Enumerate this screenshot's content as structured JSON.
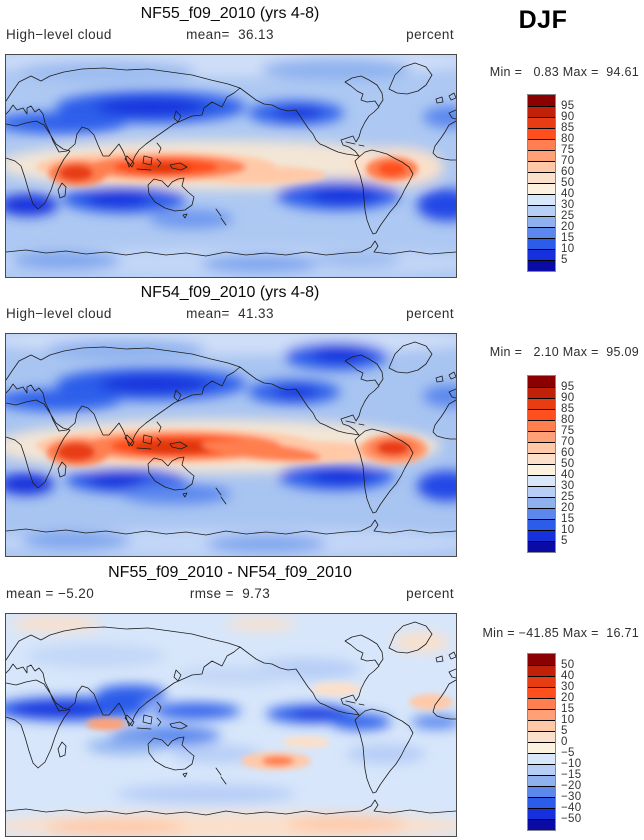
{
  "figure": {
    "season_label": "DJF"
  },
  "panels": [
    {
      "title": "NF55_f09_2010 (yrs 4-8)",
      "subtitle_left": "High−level cloud",
      "subtitle_center": "mean=  36.13",
      "subtitle_right": "percent",
      "minmax": "Min =   0.83 Max =  94.61"
    },
    {
      "title": "NF54_f09_2010 (yrs 4-8)",
      "subtitle_left": "High−level cloud",
      "subtitle_center": "mean=  41.33",
      "subtitle_right": "percent",
      "minmax": "Min =   2.10 Max =  95.09"
    },
    {
      "title": "NF55_f09_2010 - NF54_f09_2010",
      "subtitle_left": "mean = −5.20",
      "subtitle_center": "rmse =  9.73",
      "subtitle_right": "percent",
      "minmax": "Min = −41.85 Max =  16.71"
    }
  ],
  "colorbars": {
    "absolute": {
      "segment_colors": [
        "#8b0000",
        "#c22109",
        "#e83c12",
        "#ff4f1f",
        "#ff7f50",
        "#ffa076",
        "#ffc9a8",
        "#fbe0cb",
        "#fdf1e0",
        "#d9e7fa",
        "#b7cef7",
        "#8fb2ef",
        "#5c88ee",
        "#2b5cea",
        "#1530dc",
        "#0a0aa5"
      ],
      "tick_labels": [
        "95",
        "90",
        "85",
        "80",
        "75",
        "70",
        "60",
        "50",
        "40",
        "30",
        "25",
        "20",
        "15",
        "10",
        "5"
      ]
    },
    "difference": {
      "segment_colors": [
        "#8b0000",
        "#c22109",
        "#e83c12",
        "#ff4f1f",
        "#ff7f50",
        "#ffa076",
        "#ffc9a8",
        "#fbe0cb",
        "#fdf1e0",
        "#d9e7fa",
        "#b7cef7",
        "#8fb2ef",
        "#5c88ee",
        "#2b5cea",
        "#1530dc",
        "#0a0aa5"
      ],
      "tick_labels": [
        "50",
        "40",
        "30",
        "20",
        "15",
        "10",
        "5",
        "0",
        "−5",
        "−10",
        "−15",
        "−20",
        "−30",
        "−40",
        "−50"
      ]
    }
  },
  "chart_data": [
    {
      "type": "heatmap",
      "subtype": "global-latlon-filled-contour-map",
      "title": "NF55_f09_2010 (yrs 4-8)",
      "variable": "High-level cloud",
      "units": "percent",
      "season": "DJF",
      "stats": {
        "mean": 36.13,
        "min": 0.83,
        "max": 94.61
      },
      "contour_levels": [
        5,
        10,
        15,
        20,
        25,
        30,
        40,
        50,
        60,
        70,
        75,
        80,
        85,
        90,
        95
      ],
      "palette": "dark blue (low) to dark red (high), cream near 40-50",
      "legend_position": "right",
      "pattern_summary": "High cloud (red) in tropical band over southern Africa, Indonesia/west Pacific and Amazon; low cloud (dark blue) over mid-latitude Asia, NE Pacific, south Indian Ocean, SE Pacific and South Atlantic subtropics."
    },
    {
      "type": "heatmap",
      "subtype": "global-latlon-filled-contour-map",
      "title": "NF54_f09_2010 (yrs 4-8)",
      "variable": "High-level cloud",
      "units": "percent",
      "season": "DJF",
      "stats": {
        "mean": 41.33,
        "min": 2.1,
        "max": 95.09
      },
      "contour_levels": [
        5,
        10,
        15,
        20,
        25,
        30,
        40,
        50,
        60,
        70,
        75,
        80,
        85,
        90,
        95
      ],
      "palette": "dark blue (low) to dark red (high), cream near 40-50",
      "legend_position": "right",
      "pattern_summary": "Same pattern but stronger and broader tropical high-cloud band extending across the Pacific; larger red maximum over the Amazon."
    },
    {
      "type": "heatmap",
      "subtype": "global-latlon-filled-contour-difference-map",
      "title": "NF55_f09_2010 - NF54_f09_2010",
      "variable": "High-level cloud difference",
      "units": "percent",
      "season": "DJF",
      "stats": {
        "mean": -5.2,
        "rmse": 9.73,
        "min": -41.85,
        "max": 16.71
      },
      "contour_levels": [
        -50,
        -40,
        -30,
        -20,
        -15,
        -10,
        -5,
        0,
        5,
        10,
        15,
        20,
        30,
        40,
        50
      ],
      "palette": "dark blue (negative) to dark red (positive), cream near 0",
      "legend_position": "right",
      "pattern_summary": "Mostly weak negative differences (pale blue); strong negatives (dark blue) near 10N across Africa-South Asia and east Pacific/Caribbean; scattered weak positives (peach) over oceans and around Antarctica."
    }
  ]
}
